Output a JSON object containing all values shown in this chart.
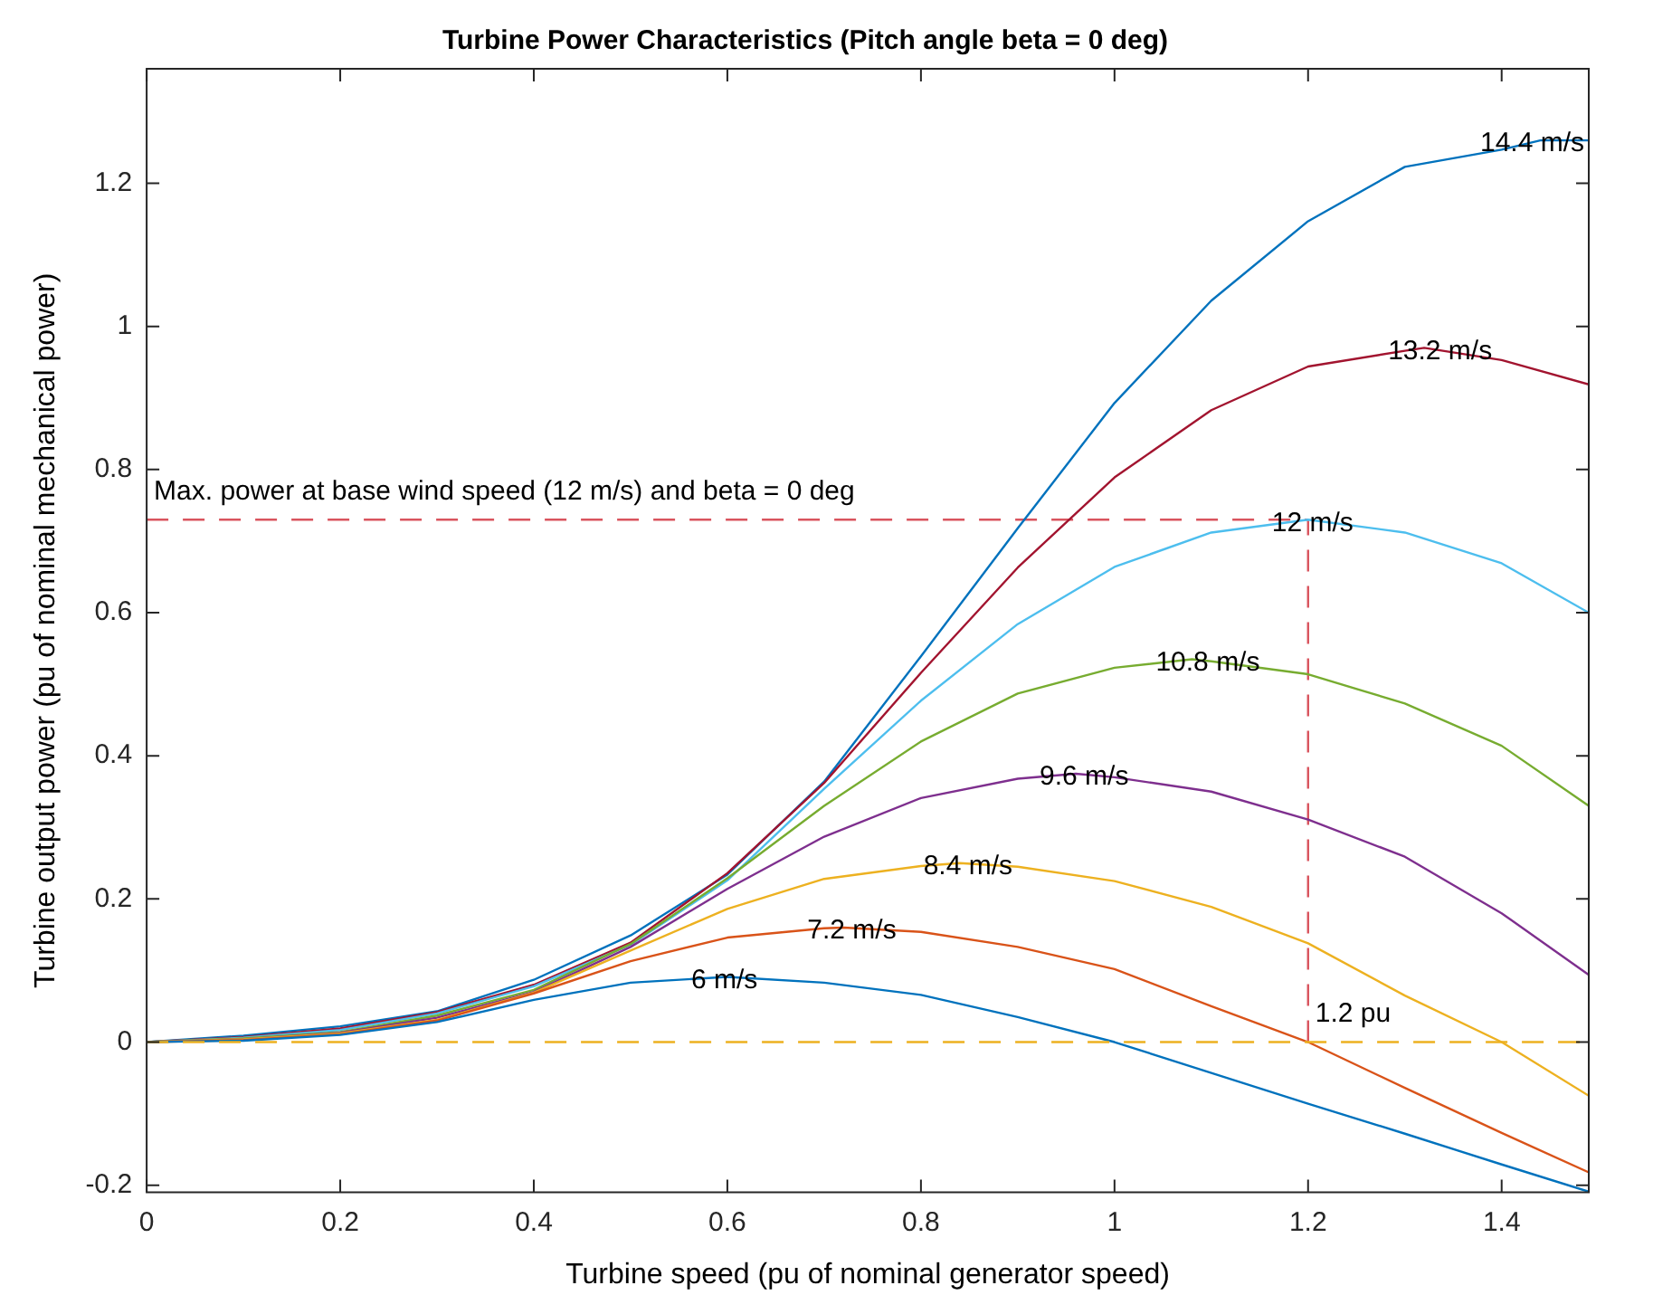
{
  "chart_data": {
    "type": "line",
    "title": "Turbine Power Characteristics (Pitch angle beta = 0 deg)",
    "xlabel": "Turbine speed (pu of nominal generator speed)",
    "ylabel": "Turbine output power (pu of nominal mechanical power)",
    "xlim": [
      0,
      1.49
    ],
    "xticks": [
      0,
      0.2,
      0.4,
      0.6,
      0.8,
      1,
      1.2,
      1.4
    ],
    "ylim": [
      -0.21,
      1.36
    ],
    "yticks": [
      -0.2,
      0,
      0.2,
      0.4,
      0.6,
      0.8,
      1,
      1.2
    ],
    "grid": false,
    "legend": false,
    "marker": "none",
    "series": [
      {
        "name": "6 m/s",
        "color": "#0072bd",
        "x": [
          0,
          0.1,
          0.2,
          0.3,
          0.4,
          0.5,
          0.6,
          0.7,
          0.8,
          0.9,
          1.0,
          1.1,
          1.2,
          1.3,
          1.4,
          1.49
        ],
        "values": [
          0,
          0.002,
          0.01,
          0.028,
          0.059,
          0.083,
          0.091,
          0.083,
          0.066,
          0.035,
          0,
          -0.043,
          -0.086,
          -0.128,
          -0.171,
          -0.209
        ]
      },
      {
        "name": "7.2 m/s",
        "color": "#d95319",
        "x": [
          0,
          0.1,
          0.2,
          0.3,
          0.4,
          0.5,
          0.6,
          0.7,
          0.72,
          0.8,
          0.9,
          1.0,
          1.1,
          1.2,
          1.3,
          1.4,
          1.49
        ],
        "values": [
          0,
          0.003,
          0.011,
          0.03,
          0.068,
          0.113,
          0.146,
          0.159,
          0.16,
          0.154,
          0.133,
          0.102,
          0.05,
          0,
          -0.064,
          -0.127,
          -0.182
        ]
      },
      {
        "name": "8.4 m/s",
        "color": "#edb120",
        "x": [
          0,
          0.1,
          0.2,
          0.3,
          0.4,
          0.5,
          0.6,
          0.7,
          0.8,
          0.84,
          0.9,
          1.0,
          1.1,
          1.2,
          1.3,
          1.4,
          1.49
        ],
        "values": [
          0,
          0.004,
          0.012,
          0.031,
          0.069,
          0.128,
          0.186,
          0.228,
          0.246,
          0.25,
          0.245,
          0.225,
          0.189,
          0.138,
          0.065,
          0,
          -0.075
        ]
      },
      {
        "name": "9.6 m/s",
        "color": "#7e2f8e",
        "x": [
          0,
          0.1,
          0.2,
          0.3,
          0.4,
          0.5,
          0.6,
          0.7,
          0.8,
          0.9,
          0.96,
          1.0,
          1.1,
          1.2,
          1.3,
          1.4,
          1.49
        ],
        "values": [
          0,
          0.004,
          0.013,
          0.034,
          0.07,
          0.133,
          0.214,
          0.287,
          0.341,
          0.368,
          0.375,
          0.37,
          0.35,
          0.311,
          0.259,
          0.18,
          0.094
        ]
      },
      {
        "name": "10.8 m/s",
        "color": "#77ac30",
        "x": [
          0,
          0.1,
          0.2,
          0.3,
          0.4,
          0.5,
          0.6,
          0.7,
          0.8,
          0.9,
          1.0,
          1.08,
          1.1,
          1.2,
          1.3,
          1.4,
          1.49
        ],
        "values": [
          0,
          0.005,
          0.014,
          0.037,
          0.073,
          0.137,
          0.229,
          0.33,
          0.42,
          0.487,
          0.523,
          0.535,
          0.532,
          0.514,
          0.473,
          0.414,
          0.33
        ]
      },
      {
        "name": "12 m/s",
        "color": "#4dbeee",
        "x": [
          0,
          0.1,
          0.2,
          0.3,
          0.4,
          0.5,
          0.6,
          0.7,
          0.8,
          0.9,
          1.0,
          1.1,
          1.2,
          1.3,
          1.4,
          1.49
        ],
        "values": [
          0,
          0.006,
          0.017,
          0.04,
          0.078,
          0.136,
          0.226,
          0.354,
          0.477,
          0.584,
          0.664,
          0.712,
          0.73,
          0.712,
          0.669,
          0.6
        ]
      },
      {
        "name": "13.2 m/s",
        "color": "#a2142f",
        "x": [
          0,
          0.1,
          0.2,
          0.3,
          0.4,
          0.5,
          0.6,
          0.7,
          0.8,
          0.9,
          1.0,
          1.1,
          1.2,
          1.3,
          1.32,
          1.4,
          1.49
        ],
        "values": [
          0,
          0.007,
          0.019,
          0.042,
          0.08,
          0.139,
          0.236,
          0.362,
          0.516,
          0.663,
          0.789,
          0.883,
          0.944,
          0.966,
          0.97,
          0.953,
          0.919
        ]
      },
      {
        "name": "14.4 m/s",
        "color": "#0072bd",
        "x": [
          0,
          0.1,
          0.2,
          0.3,
          0.4,
          0.5,
          0.6,
          0.7,
          0.8,
          0.9,
          1.0,
          1.1,
          1.2,
          1.3,
          1.4,
          1.44,
          1.49
        ],
        "values": [
          0,
          0.009,
          0.022,
          0.043,
          0.087,
          0.149,
          0.234,
          0.364,
          0.539,
          0.718,
          0.893,
          1.036,
          1.147,
          1.223,
          1.247,
          1.26,
          1.26
        ]
      },
      {
        "color": "#d9545e",
        "line_style": "dashed",
        "x": [
          0,
          1.2
        ],
        "values": [
          0.73,
          0.73
        ]
      },
      {
        "color": "#d9545e",
        "line_style": "dashed",
        "x": [
          1.2,
          1.2
        ],
        "values": [
          0,
          0.73
        ]
      }
    ],
    "ref_lines": [
      {
        "axis": "y",
        "value": 0,
        "color": "#edb120",
        "line_style": "dashed"
      }
    ],
    "annotations": [
      {
        "text": "Max. power at base wind speed (12 m/s) and beta = 0 deg",
        "x": 0,
        "y": 0.73
      },
      {
        "text": "1.2 pu",
        "x": 1.2,
        "y": 0
      }
    ]
  }
}
